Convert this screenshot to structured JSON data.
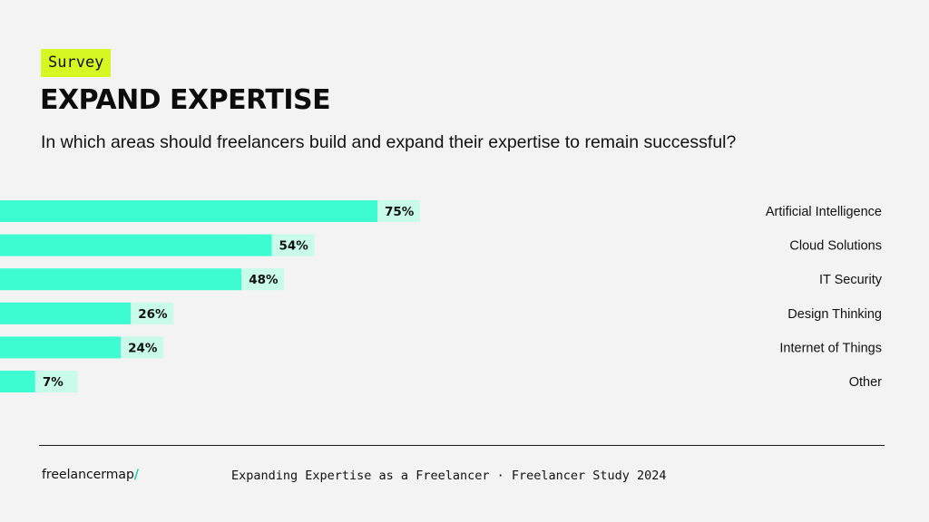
{
  "header": {
    "badge": "Survey",
    "title": "EXPAND EXPERTISE",
    "subtitle": "In which areas should freelancers build and expand their expertise to remain successful?"
  },
  "colors": {
    "bar": "#3dfcd2",
    "label_bg": "#c8fbe9",
    "badge": "#d7f723",
    "logo_slash": "#17c9a4"
  },
  "chart_data": {
    "type": "bar",
    "orientation": "horizontal",
    "categories": [
      "Artificial Intelligence",
      "Cloud Solutions",
      "IT Security",
      "Design Thinking",
      "Internet of Things",
      "Other"
    ],
    "values": [
      75,
      54,
      48,
      26,
      24,
      7
    ],
    "value_labels": [
      "75%",
      "54%",
      "48%",
      "26%",
      "24%",
      "7%"
    ],
    "unit": "%",
    "xlim": [
      0,
      100
    ],
    "grid": false,
    "legend": "none"
  },
  "footer": {
    "logo_text": "freelancermap",
    "logo_slash": "/",
    "caption": "Expanding Expertise as a Freelancer · Freelancer Study 2024"
  }
}
